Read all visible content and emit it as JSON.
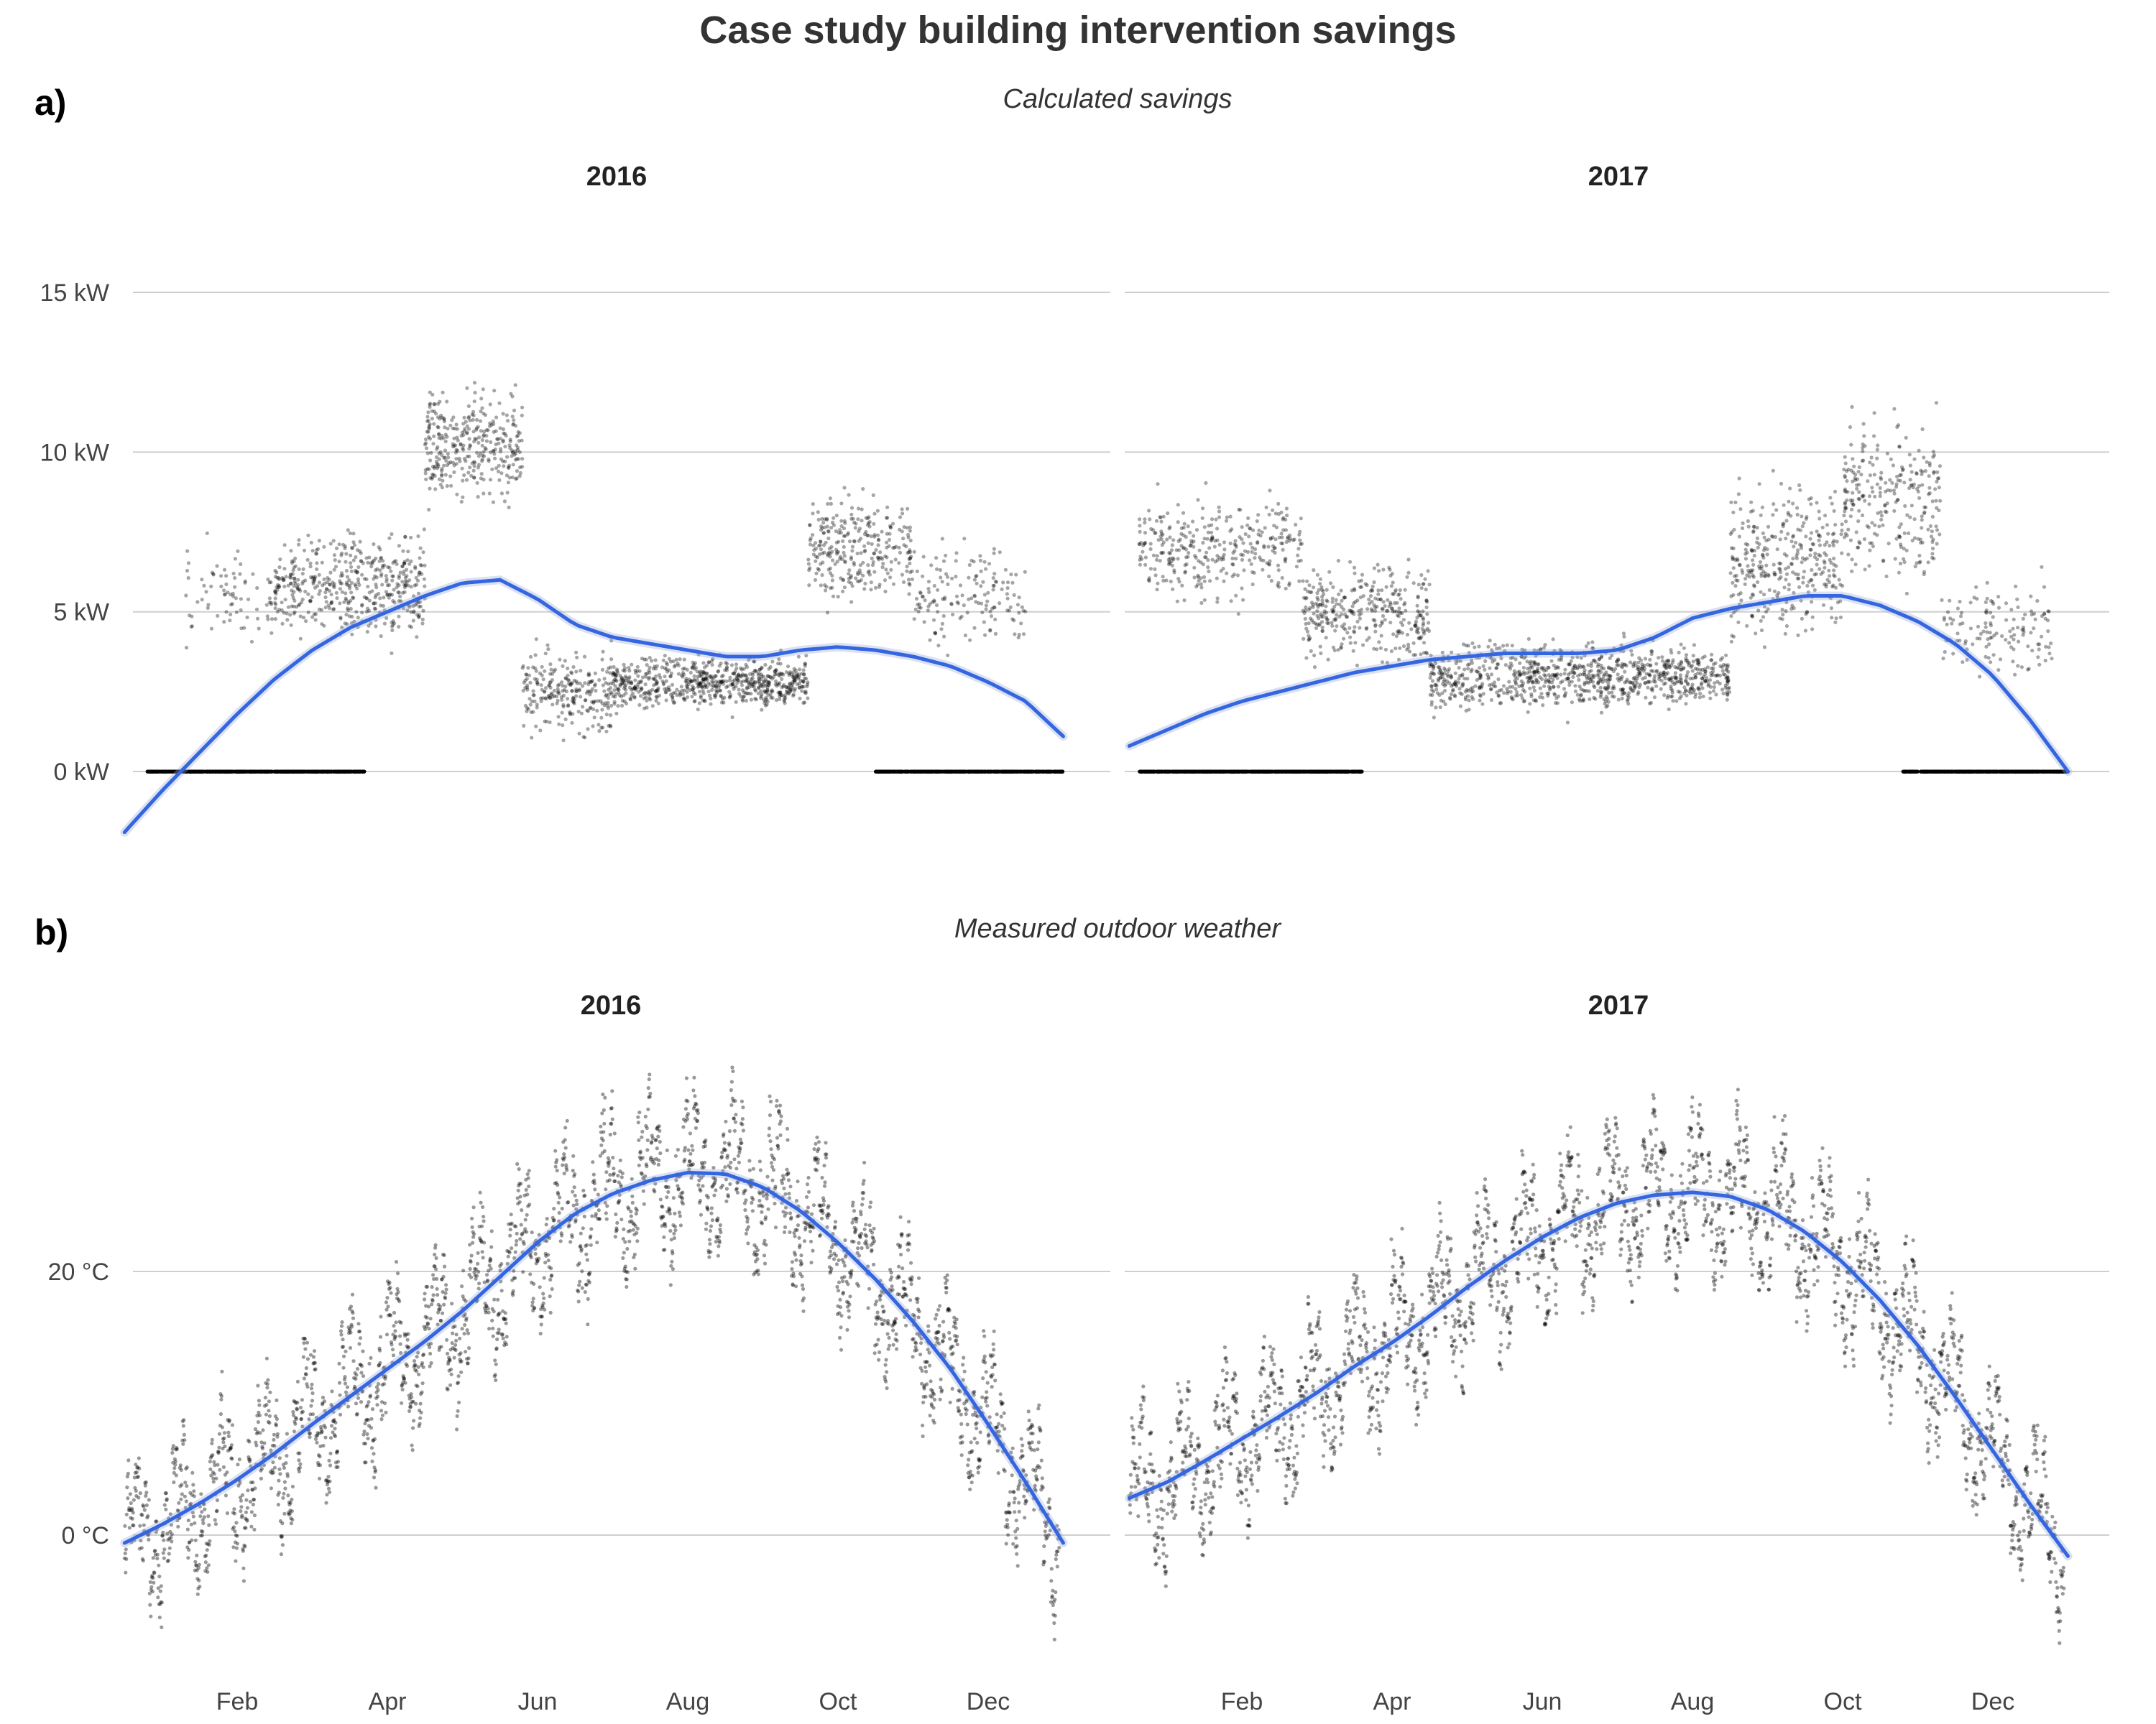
{
  "figure": {
    "title": "Case study building intervention savings",
    "panel_a_label": "a)",
    "panel_b_label": "b)",
    "panel_a_subtitle": "Calculated savings",
    "panel_b_subtitle": "Measured outdoor weather"
  },
  "colors": {
    "smooth": "#3366e0",
    "points": "#000000",
    "grid": "#cfcfcf"
  },
  "chart_data": [
    {
      "type": "scatter",
      "panel": "a)",
      "title": "Calculated savings",
      "facets": [
        "2016",
        "2017"
      ],
      "y_unit": "kW",
      "yticks": [
        0,
        5,
        10,
        15
      ],
      "ytick_labels": [
        "0 kW",
        "5 kW",
        "10 kW",
        "15 kW"
      ],
      "ylim": [
        -2,
        17.6
      ],
      "xlim_months": [
        0.5,
        12.5
      ],
      "xtick_labels": [
        "Feb",
        "Apr",
        "Jun",
        "Aug",
        "Oct",
        "Dec"
      ],
      "series": [
        {
          "facet": "2016",
          "smooth": [
            [
              0.5,
              -1.9
            ],
            [
              1,
              -0.6
            ],
            [
              1.5,
              0.6
            ],
            [
              2,
              1.8
            ],
            [
              2.5,
              2.9
            ],
            [
              3,
              3.8
            ],
            [
              3.5,
              4.5
            ],
            [
              4,
              5.0
            ],
            [
              4.5,
              5.5
            ],
            [
              5,
              5.9
            ],
            [
              5.5,
              6.0
            ],
            [
              6,
              5.4
            ],
            [
              6.5,
              4.6
            ],
            [
              7,
              4.2
            ],
            [
              7.5,
              4.0
            ],
            [
              8,
              3.8
            ],
            [
              8.5,
              3.6
            ],
            [
              9,
              3.6
            ],
            [
              9.5,
              3.8
            ],
            [
              10,
              3.9
            ],
            [
              10.5,
              3.8
            ],
            [
              11,
              3.6
            ],
            [
              11.5,
              3.3
            ],
            [
              12,
              2.8
            ],
            [
              12.5,
              2.2
            ],
            [
              13,
              1.1
            ]
          ],
          "point_bands": [
            {
              "from": 0.5,
              "to": 3.7,
              "level": 0,
              "spread": 0.05,
              "density": 1.0
            },
            {
              "from": 1.3,
              "to": 2.5,
              "level": 5.5,
              "spread": 2.2,
              "density": 0.25
            },
            {
              "from": 2.5,
              "to": 4.5,
              "level": 5.8,
              "spread": 2.4,
              "density": 0.9
            },
            {
              "from": 4.5,
              "to": 5.8,
              "level": 10.2,
              "spread": 2.6,
              "density": 1.0
            },
            {
              "from": 5.8,
              "to": 7.0,
              "level": 2.5,
              "spread": 2.0,
              "density": 0.8
            },
            {
              "from": 7.0,
              "to": 9.6,
              "level": 2.8,
              "spread": 1.2,
              "density": 1.0
            },
            {
              "from": 9.6,
              "to": 11.0,
              "level": 7.0,
              "spread": 2.5,
              "density": 0.8
            },
            {
              "from": 11.0,
              "to": 12.5,
              "level": 5.5,
              "spread": 2.5,
              "density": 0.4
            },
            {
              "from": 10.5,
              "to": 13.0,
              "level": 0,
              "spread": 0.05,
              "density": 0.9
            }
          ]
        },
        {
          "facet": "2017",
          "smooth": [
            [
              0.5,
              0.8
            ],
            [
              1,
              1.3
            ],
            [
              1.5,
              1.8
            ],
            [
              2,
              2.2
            ],
            [
              2.5,
              2.5
            ],
            [
              3,
              2.8
            ],
            [
              3.5,
              3.1
            ],
            [
              4,
              3.3
            ],
            [
              4.5,
              3.5
            ],
            [
              5,
              3.6
            ],
            [
              5.5,
              3.7
            ],
            [
              6,
              3.7
            ],
            [
              6.5,
              3.7
            ],
            [
              7,
              3.8
            ],
            [
              7.5,
              4.2
            ],
            [
              8,
              4.8
            ],
            [
              8.5,
              5.1
            ],
            [
              9,
              5.3
            ],
            [
              9.5,
              5.5
            ],
            [
              10,
              5.5
            ],
            [
              10.5,
              5.2
            ],
            [
              11,
              4.7
            ],
            [
              11.5,
              4.0
            ],
            [
              12,
              3.0
            ],
            [
              12.5,
              1.6
            ],
            [
              13,
              0.0
            ]
          ],
          "point_bands": [
            {
              "from": 0.5,
              "to": 3.6,
              "level": 0,
              "spread": 0.05,
              "density": 1.0
            },
            {
              "from": 0.6,
              "to": 2.8,
              "level": 7.0,
              "spread": 2.5,
              "density": 0.6
            },
            {
              "from": 2.8,
              "to": 4.5,
              "level": 5.0,
              "spread": 2.4,
              "density": 0.8
            },
            {
              "from": 4.5,
              "to": 7.5,
              "level": 3.0,
              "spread": 1.6,
              "density": 0.9
            },
            {
              "from": 7.5,
              "to": 8.5,
              "level": 3.0,
              "spread": 1.3,
              "density": 0.9
            },
            {
              "from": 8.5,
              "to": 10.0,
              "level": 6.5,
              "spread": 3.5,
              "density": 0.9
            },
            {
              "from": 10.0,
              "to": 11.3,
              "level": 8.5,
              "spread": 3.5,
              "density": 0.8
            },
            {
              "from": 11.3,
              "to": 12.8,
              "level": 4.5,
              "spread": 2.5,
              "density": 0.35
            },
            {
              "from": 10.8,
              "to": 13.0,
              "level": 0,
              "spread": 0.05,
              "density": 0.9
            }
          ]
        }
      ]
    },
    {
      "type": "scatter",
      "panel": "b)",
      "title": "Measured outdoor weather",
      "facets": [
        "2016",
        "2017"
      ],
      "y_unit": "°C",
      "yticks": [
        0,
        20
      ],
      "ytick_labels": [
        "0 °C",
        "20 °C"
      ],
      "ylim": [
        -10.5,
        37.5
      ],
      "xlim_months": [
        0.5,
        13
      ],
      "xtick_labels": [
        "Feb",
        "Apr",
        "Jun",
        "Aug",
        "Oct",
        "Dec"
      ],
      "series": [
        {
          "facet": "2016",
          "smooth": [
            [
              0.5,
              -0.6
            ],
            [
              1,
              0.8
            ],
            [
              1.5,
              2.4
            ],
            [
              2,
              4.2
            ],
            [
              2.5,
              6.2
            ],
            [
              3,
              8.4
            ],
            [
              3.5,
              10.5
            ],
            [
              4,
              12.6
            ],
            [
              4.5,
              14.7
            ],
            [
              5,
              17.0
            ],
            [
              5.5,
              19.6
            ],
            [
              6,
              22.2
            ],
            [
              6.5,
              24.4
            ],
            [
              7,
              25.9
            ],
            [
              7.5,
              26.9
            ],
            [
              8,
              27.5
            ],
            [
              8.5,
              27.4
            ],
            [
              9,
              26.4
            ],
            [
              9.5,
              24.6
            ],
            [
              10,
              22.2
            ],
            [
              10.5,
              19.4
            ],
            [
              11,
              16.2
            ],
            [
              11.5,
              12.6
            ],
            [
              12,
              8.4
            ],
            [
              12.5,
              4.0
            ],
            [
              13,
              -0.6
            ]
          ],
          "temp_noise": 5.0
        },
        {
          "facet": "2017",
          "smooth": [
            [
              0.5,
              2.8
            ],
            [
              1,
              4.0
            ],
            [
              1.5,
              5.6
            ],
            [
              2,
              7.3
            ],
            [
              2.5,
              9.0
            ],
            [
              3,
              10.8
            ],
            [
              3.5,
              12.8
            ],
            [
              4,
              14.6
            ],
            [
              4.5,
              16.6
            ],
            [
              5,
              18.8
            ],
            [
              5.5,
              20.8
            ],
            [
              6,
              22.6
            ],
            [
              6.5,
              24.1
            ],
            [
              7,
              25.2
            ],
            [
              7.5,
              25.8
            ],
            [
              8,
              26.0
            ],
            [
              8.5,
              25.7
            ],
            [
              9,
              24.7
            ],
            [
              9.5,
              23.0
            ],
            [
              10,
              20.7
            ],
            [
              10.5,
              17.8
            ],
            [
              11,
              14.4
            ],
            [
              11.5,
              10.5
            ],
            [
              12,
              6.4
            ],
            [
              12.5,
              2.3
            ],
            [
              13,
              -1.6
            ]
          ],
          "temp_noise": 5.0
        }
      ]
    }
  ]
}
